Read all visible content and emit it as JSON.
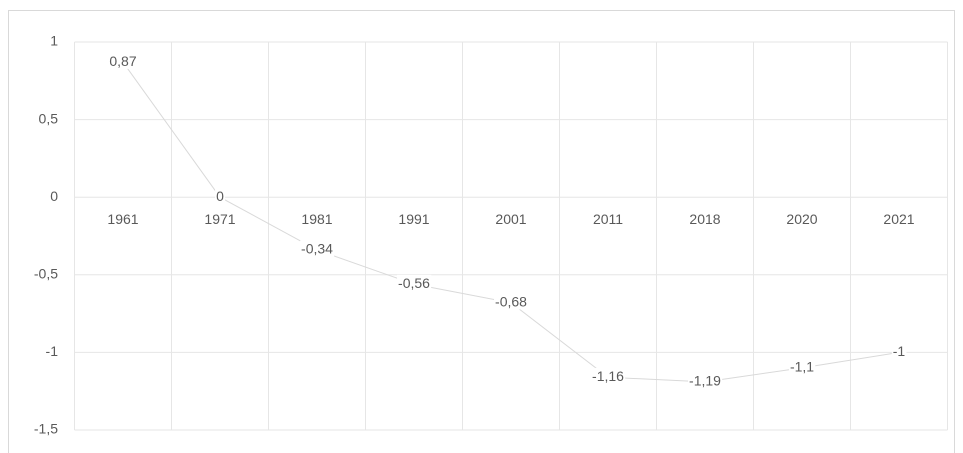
{
  "chart_data": {
    "type": "line",
    "categories": [
      "1961",
      "1971",
      "1981",
      "1991",
      "2001",
      "2011",
      "2018",
      "2020",
      "2021"
    ],
    "values": [
      0.87,
      0,
      -0.34,
      -0.56,
      -0.68,
      -1.16,
      -1.19,
      -1.1,
      -1
    ],
    "value_labels": [
      "0,87",
      "0",
      "-0,34",
      "-0,56",
      "-0,68",
      "-1,16",
      "-1,19",
      "-1,1",
      "-1"
    ],
    "color": "#d9d9d9",
    "ylim": [
      -1.5,
      1
    ],
    "yticks": [
      1,
      {
        "value": 0.5,
        "label": "0,5"
      },
      0,
      {
        "value": -0.5,
        "label": "-0,5"
      },
      -1,
      {
        "value": -1.5,
        "label": "-1,5"
      }
    ],
    "grid": true
  }
}
